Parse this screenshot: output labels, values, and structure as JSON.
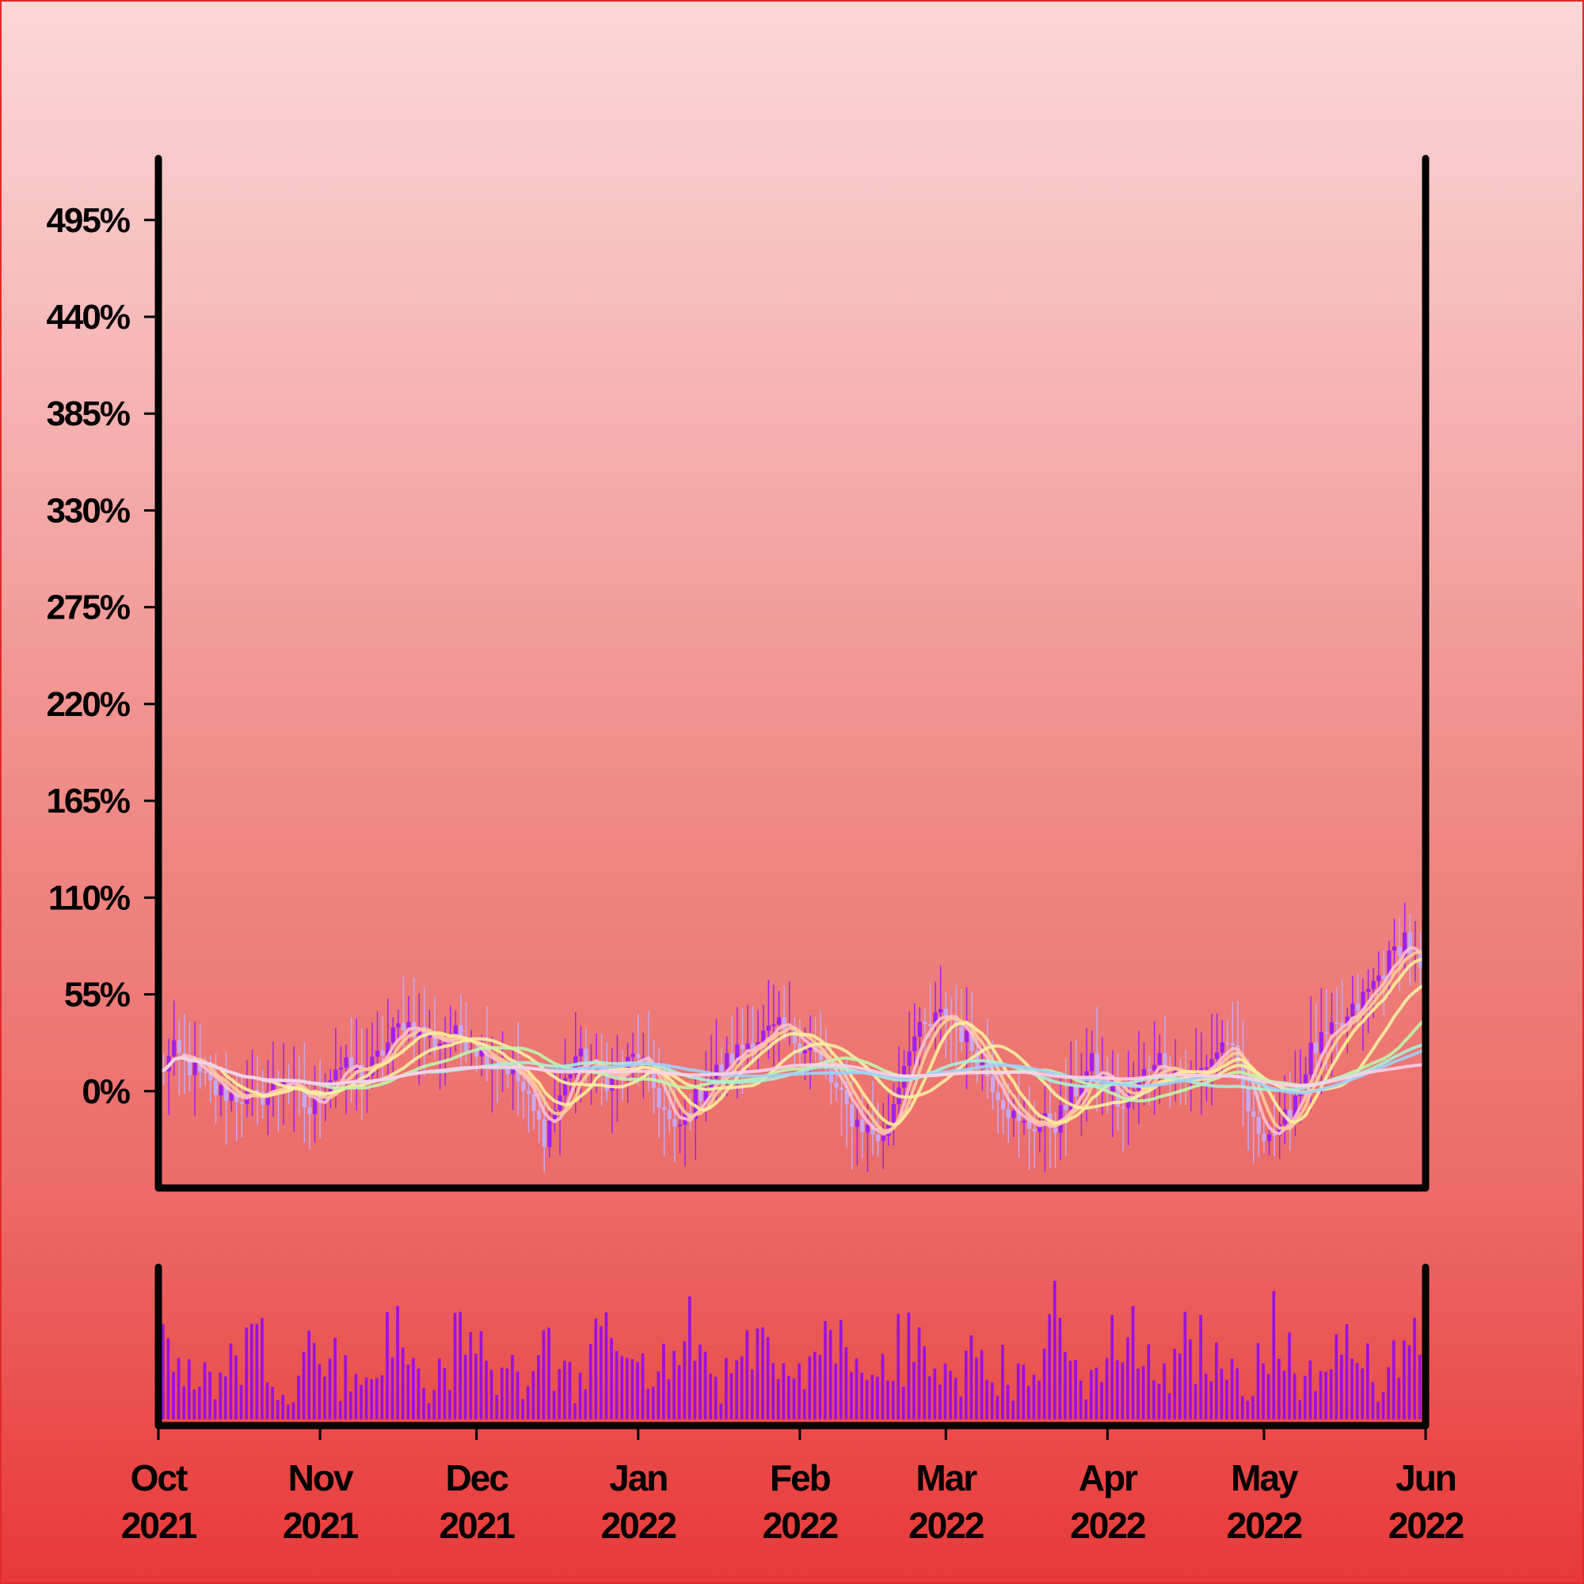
{
  "chart_data": [
    {
      "type": "candlestick",
      "title": "",
      "xlabel": "",
      "ylabel": "",
      "ylim": [
        -55,
        530
      ],
      "yticks": [
        "0%",
        "55%",
        "110%",
        "165%",
        "220%",
        "275%",
        "330%",
        "385%",
        "440%",
        "495%"
      ],
      "ytick_values": [
        0,
        55,
        110,
        165,
        220,
        275,
        330,
        385,
        440,
        495
      ],
      "x_start": "2021-10-01",
      "x_end": "2022-06-01",
      "xticks": [
        {
          "month": "Oct",
          "year": "2021",
          "date": "2021-10-01"
        },
        {
          "month": "Nov",
          "year": "2021",
          "date": "2021-11-01"
        },
        {
          "month": "Dec",
          "year": "2021",
          "date": "2021-12-01"
        },
        {
          "month": "Jan",
          "year": "2022",
          "date": "2022-01-01"
        },
        {
          "month": "Feb",
          "year": "2022",
          "date": "2022-02-01"
        },
        {
          "month": "Mar",
          "year": "2022",
          "date": "2022-03-01"
        },
        {
          "month": "Apr",
          "year": "2022",
          "date": "2022-04-01"
        },
        {
          "month": "May",
          "year": "2022",
          "date": "2022-05-01"
        },
        {
          "month": "Jun",
          "year": "2022",
          "date": "2022-06-01"
        }
      ],
      "close_keypoints": [
        [
          "2021-10-01",
          10
        ],
        [
          "2021-10-04",
          22
        ],
        [
          "2021-10-12",
          0
        ],
        [
          "2021-10-20",
          -5
        ],
        [
          "2021-10-25",
          8
        ],
        [
          "2021-10-30",
          -12
        ],
        [
          "2021-11-04",
          14
        ],
        [
          "2021-11-10",
          10
        ],
        [
          "2021-11-17",
          40
        ],
        [
          "2021-11-23",
          28
        ],
        [
          "2021-11-28",
          32
        ],
        [
          "2021-12-03",
          20
        ],
        [
          "2021-12-08",
          12
        ],
        [
          "2021-12-14",
          -25
        ],
        [
          "2021-12-20",
          20
        ],
        [
          "2021-12-27",
          5
        ],
        [
          "2022-01-01",
          22
        ],
        [
          "2022-01-08",
          -25
        ],
        [
          "2022-01-14",
          5
        ],
        [
          "2022-01-22",
          28
        ],
        [
          "2022-01-28",
          35
        ],
        [
          "2022-02-03",
          25
        ],
        [
          "2022-02-11",
          -15
        ],
        [
          "2022-02-17",
          -28
        ],
        [
          "2022-02-22",
          28
        ],
        [
          "2022-03-01",
          45
        ],
        [
          "2022-03-06",
          25
        ],
        [
          "2022-03-15",
          -20
        ],
        [
          "2022-03-22",
          -18
        ],
        [
          "2022-03-29",
          15
        ],
        [
          "2022-04-04",
          -10
        ],
        [
          "2022-04-10",
          20
        ],
        [
          "2022-04-17",
          5
        ],
        [
          "2022-04-24",
          30
        ],
        [
          "2022-04-29",
          -20
        ],
        [
          "2022-05-04",
          -25
        ],
        [
          "2022-05-10",
          22
        ],
        [
          "2022-05-17",
          40
        ],
        [
          "2022-05-23",
          65
        ],
        [
          "2022-05-28",
          88
        ],
        [
          "2022-06-01",
          60
        ]
      ],
      "moving_average_windows": [
        5,
        7,
        10,
        20,
        30,
        50,
        60,
        90
      ],
      "series_colors": {
        "candle_up": "#a020f0",
        "candle_down": "#c8a8f0",
        "ma": [
          "#ffc0cb",
          "#ffcc99",
          "#ffee99",
          "#f5f0a0",
          "#c0f5a8",
          "#a8f0d8",
          "#a0d0f8",
          "#ffd0e8"
        ]
      }
    },
    {
      "type": "bar",
      "title": "",
      "xlabel": "",
      "ylabel": "",
      "bar_color": "#9b10e0",
      "volume_range": [
        0,
        100
      ],
      "volume_pattern_note": "daily volume bars with weekly oscillation"
    }
  ]
}
